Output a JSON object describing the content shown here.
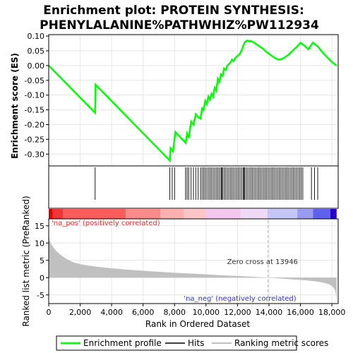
{
  "chart_data": [
    {
      "type": "line",
      "title_lines": [
        "Enrichment plot: PROTEIN SYNTHESIS:",
        "PHENYLALANINE%PATHWHIZ%PW112934"
      ],
      "ylabel": "Enrichment score (ES)",
      "xlim": [
        0,
        18400
      ],
      "ylim": [
        -0.34,
        0.105
      ],
      "yticks": [
        -0.3,
        -0.25,
        -0.2,
        -0.15,
        -0.1,
        -0.05,
        0.0,
        0.05,
        0.1
      ],
      "ytick_labels": [
        "-0.30",
        "-0.25",
        "-0.20",
        "-0.15",
        "-0.10",
        "-0.05",
        "0.00",
        "0.05",
        "0.10"
      ],
      "grid": true,
      "colors": {
        "profile": "#00ff00",
        "hits": "#000000",
        "grid": "#e6e6e6"
      },
      "series": [
        {
          "name": "Enrichment profile",
          "x": [
            0,
            2950,
            2980,
            7700,
            7750,
            7900,
            8050,
            8700,
            8800,
            8900,
            9050,
            9200,
            9350,
            9500,
            9650,
            9750,
            9850,
            9950,
            10050,
            10150,
            10250,
            10350,
            10450,
            10550,
            10650,
            10750,
            10850,
            10950,
            11050,
            11150,
            11250,
            11350,
            11450,
            11550,
            11650,
            11750,
            11850,
            11950,
            12050,
            12150,
            12250,
            12350,
            12450,
            12550,
            12650,
            12750,
            12850,
            12950,
            13050,
            13200,
            13400,
            13600,
            13800,
            14000,
            14200,
            14400,
            14600,
            14800,
            15000,
            15200,
            15400,
            15600,
            15800,
            16000,
            16200,
            16500,
            16800,
            17100,
            17400,
            17700,
            18000,
            18300
          ],
          "values": [
            0.0,
            -0.16,
            -0.065,
            -0.322,
            -0.28,
            -0.29,
            -0.225,
            -0.262,
            -0.23,
            -0.245,
            -0.19,
            -0.2,
            -0.165,
            -0.175,
            -0.18,
            -0.145,
            -0.15,
            -0.12,
            -0.13,
            -0.105,
            -0.115,
            -0.095,
            -0.105,
            -0.075,
            -0.085,
            -0.045,
            -0.055,
            -0.03,
            -0.035,
            -0.01,
            -0.015,
            0.0,
            0.005,
            0.01,
            0.02,
            0.015,
            0.025,
            0.03,
            0.035,
            0.04,
            0.05,
            0.065,
            0.078,
            0.083,
            0.085,
            0.082,
            0.084,
            0.08,
            0.078,
            0.072,
            0.065,
            0.058,
            0.048,
            0.04,
            0.032,
            0.025,
            0.02,
            0.022,
            0.028,
            0.035,
            0.045,
            0.055,
            0.065,
            0.077,
            0.07,
            0.055,
            0.078,
            0.065,
            0.045,
            0.028,
            0.012,
            0.0
          ]
        }
      ]
    },
    {
      "type": "heatmap",
      "label_pos": "'na_pos' (positively correlated)",
      "label_neg": "'na_neg' (negatively correlated)",
      "hits_legend": "Hits",
      "hits": [
        2950,
        7700,
        7850,
        8000,
        8700,
        8800,
        8900,
        9050,
        9200,
        9350,
        9500,
        9650,
        9750,
        9850,
        9950,
        10050,
        10150,
        10250,
        10350,
        10450,
        10550,
        10650,
        10750,
        10850,
        10950,
        11000,
        11050,
        11150,
        11250,
        11350,
        11450,
        11550,
        11650,
        11750,
        11850,
        11950,
        12050,
        12150,
        12250,
        12350,
        12400,
        12450,
        12550,
        12650,
        12750,
        12850,
        12950,
        13050,
        13150,
        13250,
        13350,
        13450,
        13550,
        13650,
        13750,
        13850,
        13950,
        14050,
        14150,
        14250,
        14350,
        14450,
        14550,
        14650,
        14750,
        14850,
        14950,
        15050,
        15150,
        15250,
        15350,
        15450,
        15550,
        15650,
        15750,
        15850,
        15950,
        16050,
        16150,
        16700,
        16900,
        17100
      ],
      "segments": [
        {
          "x0": 0,
          "x1": 250,
          "color": "#e00000"
        },
        {
          "x0": 250,
          "x1": 900,
          "color": "#ef3535"
        },
        {
          "x0": 900,
          "x1": 4900,
          "color": "#fa5c5c"
        },
        {
          "x0": 4900,
          "x1": 7100,
          "color": "#fb8a8a"
        },
        {
          "x0": 7100,
          "x1": 8600,
          "color": "#fcb0b0"
        },
        {
          "x0": 8600,
          "x1": 10000,
          "color": "#fcc6c6"
        },
        {
          "x0": 10000,
          "x1": 12200,
          "color": "#f5c6ee"
        },
        {
          "x0": 12200,
          "x1": 13900,
          "color": "#eedaf6"
        },
        {
          "x0": 13900,
          "x1": 15800,
          "color": "#c6c6f6"
        },
        {
          "x0": 15800,
          "x1": 16800,
          "color": "#9a9af2"
        },
        {
          "x0": 16800,
          "x1": 17900,
          "color": "#6060ee"
        },
        {
          "x0": 17900,
          "x1": 18300,
          "color": "#2a00cc"
        }
      ]
    },
    {
      "type": "area",
      "ylabel": "Ranked list metric (PreRanked)",
      "xlabel": "Rank in Ordered Dataset",
      "xlim": [
        0,
        18400
      ],
      "ylim": [
        -7.5,
        17
      ],
      "xticks": [
        0,
        2000,
        4000,
        6000,
        8000,
        10000,
        12000,
        14000,
        16000,
        18000
      ],
      "xtick_labels": [
        "0",
        "2,000",
        "4,000",
        "6,000",
        "8,000",
        "10,000",
        "12,000",
        "14,000",
        "16,000",
        "18,000"
      ],
      "yticks": [
        -5,
        0,
        5,
        10,
        15
      ],
      "ytick_labels": [
        "-5",
        "0",
        "5",
        "10",
        "15"
      ],
      "zero_cross": 13946,
      "zero_cross_label": "Zero cross at 13946",
      "legend_label": "Ranking metric scores",
      "colors": {
        "fill": "#c0c0c0",
        "zero_line": "#b4b4b4"
      },
      "series": [
        {
          "name": "Ranking metric scores",
          "x": [
            0,
            50,
            150,
            300,
            500,
            800,
            1200,
            1600,
            2000,
            2500,
            3000,
            4000,
            5000,
            6000,
            7000,
            8000,
            9000,
            10000,
            11000,
            12000,
            13000,
            13946,
            14500,
            15000,
            15500,
            16000,
            16500,
            17000,
            17500,
            17800,
            18000,
            18100,
            18200,
            18250,
            18300
          ],
          "values": [
            13.5,
            10.8,
            9.8,
            8.7,
            7.6,
            6.4,
            5.2,
            4.4,
            3.9,
            3.5,
            3.2,
            2.7,
            2.3,
            2.0,
            1.7,
            1.4,
            1.2,
            0.95,
            0.7,
            0.5,
            0.25,
            0.0,
            -0.2,
            -0.35,
            -0.5,
            -0.65,
            -0.85,
            -1.1,
            -1.5,
            -1.9,
            -2.4,
            -2.9,
            -3.6,
            -4.6,
            -6.6
          ]
        }
      ]
    }
  ],
  "legend": [
    {
      "label": "Enrichment profile",
      "color": "#00ff00"
    },
    {
      "label": "Hits",
      "color": "#000000"
    },
    {
      "label": "Ranking metric scores",
      "color": "#c0c0c0"
    }
  ]
}
